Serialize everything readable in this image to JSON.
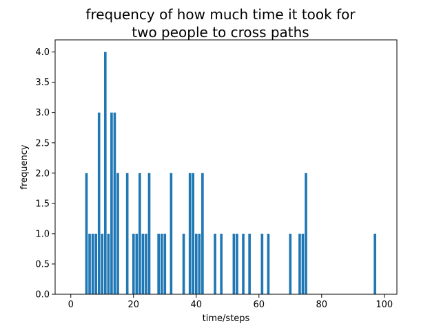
{
  "chart_data": {
    "type": "bar",
    "title_lines": [
      "frequency of how much time it took for",
      "two people to cross paths"
    ],
    "xlabel": "time/steps",
    "ylabel": "frequency",
    "xlim": [
      -5,
      104
    ],
    "ylim": [
      0,
      4.2
    ],
    "xticks": [
      0,
      20,
      40,
      60,
      80,
      100
    ],
    "yticks": [
      0.0,
      0.5,
      1.0,
      1.5,
      2.0,
      2.5,
      3.0,
      3.5,
      4.0
    ],
    "ytick_labels": [
      "0.0",
      "0.5",
      "1.0",
      "1.5",
      "2.0",
      "2.5",
      "3.0",
      "3.5",
      "4.0"
    ],
    "bar_width": 0.8,
    "bar_color": "#1f77b4",
    "grid": false,
    "x": [
      5,
      6,
      7,
      8,
      9,
      10,
      11,
      12,
      13,
      14,
      15,
      18,
      20,
      21,
      22,
      23,
      24,
      25,
      28,
      29,
      30,
      32,
      36,
      38,
      39,
      40,
      41,
      42,
      46,
      48,
      52,
      53,
      55,
      57,
      61,
      63,
      70,
      73,
      74,
      75,
      97
    ],
    "values": [
      2,
      1,
      1,
      1,
      3,
      1,
      4,
      1,
      3,
      3,
      2,
      2,
      1,
      1,
      2,
      1,
      1,
      2,
      1,
      1,
      1,
      2,
      1,
      2,
      2,
      1,
      1,
      2,
      1,
      1,
      1,
      1,
      1,
      1,
      1,
      1,
      1,
      1,
      1,
      2,
      1
    ]
  }
}
